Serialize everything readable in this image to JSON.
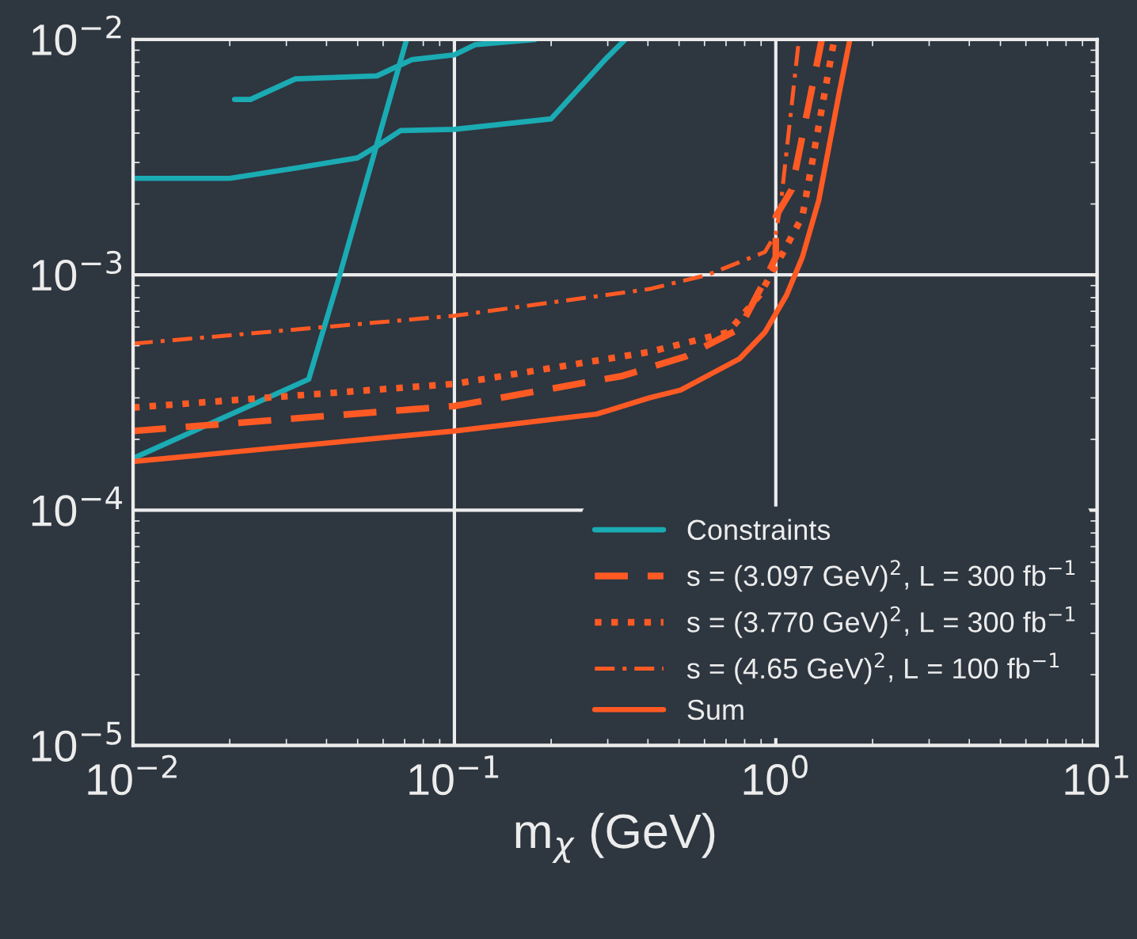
{
  "chart_data": {
    "type": "line",
    "xlabel": "m$_{χ}$ (GeV)",
    "log": "xy",
    "xlim": [
      0.01,
      10
    ],
    "ylim": [
      1e-05,
      0.01
    ],
    "xticks": [
      {
        "value": 0.01,
        "label": "10$^{−2}$"
      },
      {
        "value": 0.1,
        "label": "10$^{−1}$"
      },
      {
        "value": 1,
        "label": "10$^{0}$"
      },
      {
        "value": 10,
        "label": "10$^{1}$"
      }
    ],
    "yticks": [
      {
        "value": 1e-05,
        "label": "10$^{−5}$"
      },
      {
        "value": 0.0001,
        "label": "10$^{−4}$"
      },
      {
        "value": 0.001,
        "label": "10$^{−3}$"
      },
      {
        "value": 0.01,
        "label": "10$^{−2}$"
      }
    ],
    "grid": true,
    "legend": "bottom right",
    "series": [
      {
        "name": "Constraints",
        "color": "#1aabb3",
        "line_style": "solid",
        "x": [
          0.01,
          0.02,
          0.033,
          0.05,
          0.057,
          0.068,
          0.1,
          0.2,
          0.294,
          0.34
        ],
        "values": [
          0.00257,
          0.00257,
          0.00286,
          0.00314,
          0.0035,
          0.0041,
          0.00415,
          0.0046,
          0.0082,
          0.01
        ]
      },
      {
        "color": "#1aabb3",
        "line_style": "solid",
        "x": [
          0.0207,
          0.0232,
          0.032,
          0.0574,
          0.0736,
          0.1,
          0.116,
          0.178
        ],
        "values": [
          0.00556,
          0.00556,
          0.0068,
          0.007,
          0.0082,
          0.0086,
          0.0095,
          0.01
        ]
      },
      {
        "color": "#1aabb3",
        "line_style": "solid",
        "x": [
          0.01,
          0.0352,
          0.044,
          0.071
        ],
        "values": [
          0.000166,
          0.00036,
          0.001,
          0.01
        ]
      },
      {
        "name": "s = (3.097 GeV)$^{2}$, L = 300 fb$^{−1}$",
        "color": "#ff5a23",
        "line_style": "dashed",
        "x": [
          0.01,
          0.1,
          0.333,
          0.524,
          0.771,
          0.925,
          1.0,
          1.0,
          1.12,
          1.39
        ],
        "values": [
          0.000217,
          0.000277,
          0.000372,
          0.00045,
          0.00059,
          0.00095,
          0.00119,
          0.00177,
          0.0023,
          0.01
        ]
      },
      {
        "name": "s = (3.770 GeV)$^{2}$, L = 300 fb$^{−1}$",
        "color": "#ff5a23",
        "line_style": "dotted",
        "x": [
          0.01,
          0.1,
          0.404,
          0.71,
          0.89,
          1.035,
          1.21,
          1.52
        ],
        "values": [
          0.000273,
          0.000344,
          0.00047,
          0.00057,
          0.00082,
          0.00119,
          0.00177,
          0.01
        ]
      },
      {
        "name": "s = (4.65 GeV)$^{2}$, L = 100 fb$^{−1}$",
        "color": "#ff5a23",
        "line_style": "dashdot",
        "x": [
          0.01,
          0.1,
          0.404,
          0.614,
          0.925,
          1.0,
          1.035,
          1.18
        ],
        "values": [
          0.00051,
          0.00067,
          0.00087,
          0.001,
          0.00125,
          0.0015,
          0.00197,
          0.01
        ]
      },
      {
        "name": "Sum",
        "color": "#ff5a23",
        "line_style": "solid",
        "x": [
          0.01,
          0.1,
          0.277,
          0.404,
          0.506,
          0.771,
          0.925,
          1.08,
          1.21,
          1.36,
          1.57,
          1.7
        ],
        "values": [
          0.000161,
          0.000217,
          0.000256,
          0.0003,
          0.000324,
          0.00044,
          0.00057,
          0.00082,
          0.00119,
          0.00207,
          0.0058,
          0.01
        ]
      }
    ]
  }
}
